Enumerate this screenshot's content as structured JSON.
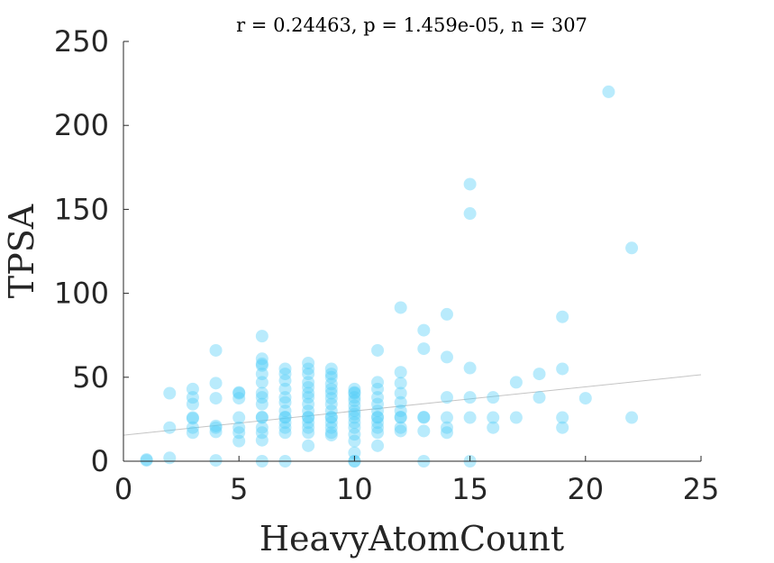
{
  "chart_data": {
    "type": "scatter",
    "title": "r = 0.24463, p = 1.459e-05, n = 307",
    "xlabel": "HeavyAtomCount",
    "ylabel": "TPSA",
    "xlim": [
      0,
      25
    ],
    "ylim": [
      0,
      250
    ],
    "x_ticks": [
      "0",
      "5",
      "10",
      "15",
      "20",
      "25"
    ],
    "y_ticks": [
      "0",
      "50",
      "100",
      "150",
      "200",
      "250"
    ],
    "grid": false,
    "legend": "none",
    "marker_color": "#4fcdf8",
    "trendline_color": "#c4c4c4",
    "trendline": {
      "x": [
        0,
        25
      ],
      "y": [
        15.5,
        51.5
      ]
    },
    "series": [
      {
        "x": [
          1,
          1,
          2,
          2,
          2,
          3,
          3,
          3,
          3,
          3,
          3,
          3,
          4,
          4,
          4,
          4,
          4,
          4,
          4,
          5,
          5,
          5,
          5,
          5,
          5,
          5,
          6,
          6,
          6,
          6,
          6,
          6,
          6,
          6,
          6,
          6,
          6,
          6,
          6,
          6,
          6,
          7,
          7,
          7,
          7,
          7,
          7,
          7,
          7,
          7,
          7,
          7,
          7,
          7,
          8,
          8,
          8,
          8,
          8,
          8,
          8,
          8,
          8,
          8,
          8,
          8,
          8,
          8,
          8,
          9,
          9,
          9,
          9,
          9,
          9,
          9,
          9,
          9,
          9,
          9,
          9,
          9,
          9,
          9,
          10,
          10,
          10,
          10,
          10,
          10,
          10,
          10,
          10,
          10,
          10,
          10,
          10,
          10,
          10,
          10,
          11,
          11,
          11,
          11,
          11,
          11,
          11,
          11,
          11,
          11,
          11,
          11,
          12,
          12,
          12,
          12,
          12,
          12,
          12,
          12,
          12,
          12,
          13,
          13,
          13,
          13,
          13,
          13,
          14,
          14,
          14,
          14,
          14,
          14,
          15,
          15,
          15,
          15,
          15,
          15,
          16,
          16,
          16,
          17,
          17,
          18,
          18,
          19,
          19,
          19,
          19,
          20,
          21,
          22,
          22
        ],
        "y": [
          0.5,
          1,
          2,
          20,
          40.5,
          17,
          20,
          25.5,
          26,
          34,
          38,
          43,
          0.5,
          17.5,
          20,
          21,
          37.5,
          46.5,
          66,
          12,
          17,
          20,
          26,
          37.5,
          40.5,
          41,
          0,
          12.5,
          17,
          20,
          26,
          26.3,
          34,
          38,
          40.5,
          47,
          52,
          57,
          58,
          61,
          74.5,
          0,
          17,
          20,
          23,
          26,
          26.3,
          30,
          35,
          38,
          43,
          48,
          52,
          55,
          9.2,
          17,
          20,
          23,
          26,
          26.3,
          30,
          34,
          38,
          40.5,
          44,
          47,
          52,
          55,
          58.5,
          15.5,
          17,
          20,
          23,
          26,
          26.3,
          30,
          34,
          37.5,
          40.5,
          43,
          46,
          50,
          52,
          55,
          0,
          0,
          5,
          12,
          16,
          20,
          23,
          26,
          28,
          30,
          33,
          36,
          38,
          40.5,
          41,
          43,
          9.2,
          17,
          20,
          23,
          26,
          26.3,
          30,
          34,
          38,
          43,
          47,
          66,
          18,
          20,
          26,
          26.3,
          30,
          35,
          40.5,
          46.5,
          53,
          91.5,
          0,
          18,
          26,
          26.3,
          67,
          78,
          17,
          20,
          26,
          38,
          62,
          87.5,
          0,
          26,
          38,
          55.5,
          147.5,
          165,
          20,
          26,
          38,
          26,
          47,
          38,
          52,
          20,
          26,
          55,
          86,
          37.5,
          220,
          26,
          127
        ]
      }
    ]
  }
}
